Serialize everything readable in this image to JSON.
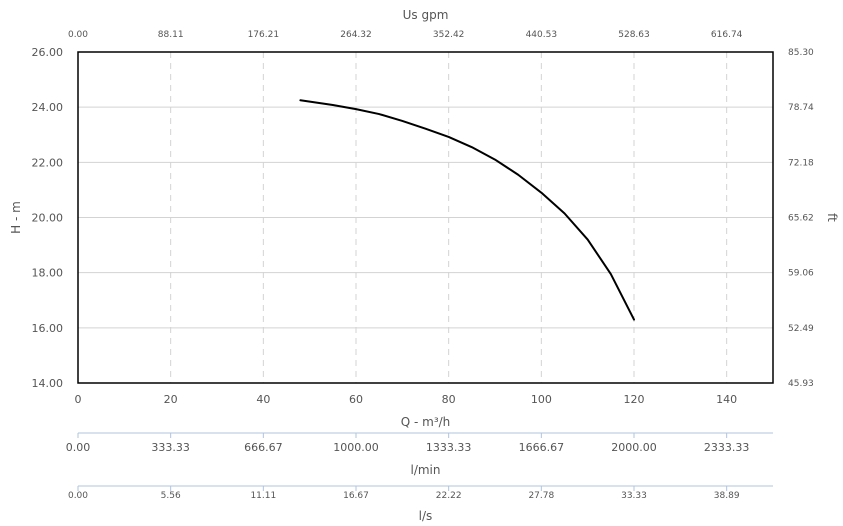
{
  "chart_data": {
    "type": "line",
    "series": [
      {
        "points": [
          {
            "x": 48,
            "y": 24.25
          },
          {
            "x": 55,
            "y": 24.08
          },
          {
            "x": 60,
            "y": 23.93
          },
          {
            "x": 65,
            "y": 23.75
          },
          {
            "x": 70,
            "y": 23.5
          },
          {
            "x": 75,
            "y": 23.22
          },
          {
            "x": 80,
            "y": 22.92
          },
          {
            "x": 85,
            "y": 22.55
          },
          {
            "x": 90,
            "y": 22.1
          },
          {
            "x": 95,
            "y": 21.55
          },
          {
            "x": 100,
            "y": 20.9
          },
          {
            "x": 105,
            "y": 20.15
          },
          {
            "x": 110,
            "y": 19.2
          },
          {
            "x": 115,
            "y": 17.95
          },
          {
            "x": 120,
            "y": 16.3
          }
        ]
      }
    ],
    "x_axis": {
      "label": "Q - m³/h",
      "min": 0,
      "max": 150,
      "ticks": [
        {
          "value": 0,
          "label": "0"
        },
        {
          "value": 20,
          "label": "20"
        },
        {
          "value": 40,
          "label": "40"
        },
        {
          "value": 60,
          "label": "60"
        },
        {
          "value": 80,
          "label": "80"
        },
        {
          "value": 100,
          "label": "100"
        },
        {
          "value": 120,
          "label": "120"
        },
        {
          "value": 140,
          "label": "140"
        }
      ]
    },
    "y_axis": {
      "label": "H - m",
      "min": 14,
      "max": 26,
      "ticks": [
        {
          "value": 14,
          "label": "14.00"
        },
        {
          "value": 16,
          "label": "16.00"
        },
        {
          "value": 18,
          "label": "18.00"
        },
        {
          "value": 20,
          "label": "20.00"
        },
        {
          "value": 22,
          "label": "22.00"
        },
        {
          "value": 24,
          "label": "24.00"
        },
        {
          "value": 26,
          "label": "26.00"
        }
      ]
    },
    "y2_axis": {
      "label": "ft",
      "ticks": [
        {
          "value": 14,
          "label": "45.93"
        },
        {
          "value": 16,
          "label": "52.49"
        },
        {
          "value": 18,
          "label": "59.06"
        },
        {
          "value": 20,
          "label": "65.62"
        },
        {
          "value": 22,
          "label": "72.18"
        },
        {
          "value": 24,
          "label": "78.74"
        },
        {
          "value": 26,
          "label": "85.30"
        }
      ]
    },
    "x_top_axis": {
      "label": "Us gpm",
      "ticks": [
        {
          "value": 0,
          "label": "0.00"
        },
        {
          "value": 20,
          "label": "88.11"
        },
        {
          "value": 40,
          "label": "176.21"
        },
        {
          "value": 60,
          "label": "264.32"
        },
        {
          "value": 80,
          "label": "352.42"
        },
        {
          "value": 100,
          "label": "440.53"
        },
        {
          "value": 120,
          "label": "528.63"
        },
        {
          "value": 140,
          "label": "616.74"
        }
      ]
    },
    "x_axis_2": {
      "label": "l/min",
      "ticks": [
        {
          "value": 0,
          "label": "0.00"
        },
        {
          "value": 20,
          "label": "333.33"
        },
        {
          "value": 40,
          "label": "666.67"
        },
        {
          "value": 60,
          "label": "1000.00"
        },
        {
          "value": 80,
          "label": "1333.33"
        },
        {
          "value": 100,
          "label": "1666.67"
        },
        {
          "value": 120,
          "label": "2000.00"
        },
        {
          "value": 140,
          "label": "2333.33"
        }
      ]
    },
    "x_axis_3": {
      "label": "l/s",
      "ticks": [
        {
          "value": 0,
          "label": "0.00"
        },
        {
          "value": 20,
          "label": "5.56"
        },
        {
          "value": 40,
          "label": "11.11"
        },
        {
          "value": 60,
          "label": "16.67"
        },
        {
          "value": 80,
          "label": "22.22"
        },
        {
          "value": 100,
          "label": "27.78"
        },
        {
          "value": 120,
          "label": "33.33"
        },
        {
          "value": 140,
          "label": "38.89"
        }
      ]
    },
    "grid": true,
    "colors": {
      "curve": "#000000",
      "grid_horizontal": "#d3d3d3",
      "grid_vertical": "#d3d3d3",
      "frame": "#000000",
      "sub_axis_line": "#b0c4de",
      "text": "#555555"
    }
  }
}
